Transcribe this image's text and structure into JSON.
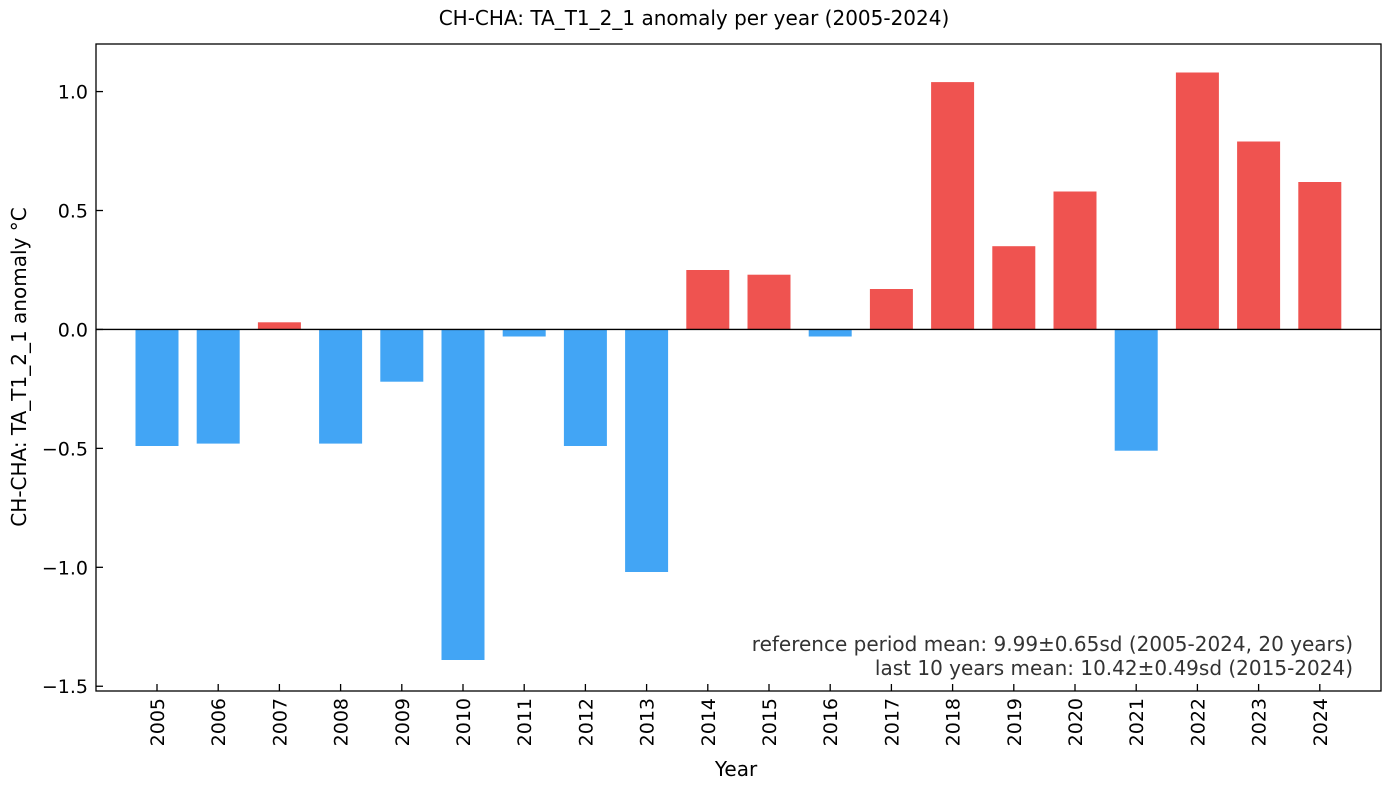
{
  "chart_data": {
    "type": "bar",
    "title": "CH-CHA: TA_T1_2_1 anomaly per year (2005-2024)",
    "xlabel": "Year",
    "ylabel": "CH-CHA: TA_T1_2_1 anomaly  °C",
    "categories": [
      "2005",
      "2006",
      "2007",
      "2008",
      "2009",
      "2010",
      "2011",
      "2012",
      "2013",
      "2014",
      "2015",
      "2016",
      "2017",
      "2018",
      "2019",
      "2020",
      "2021",
      "2022",
      "2023",
      "2024"
    ],
    "values": [
      -0.49,
      -0.48,
      0.03,
      -0.48,
      -0.22,
      -1.39,
      -0.03,
      -0.49,
      -1.02,
      0.25,
      0.23,
      -0.03,
      0.17,
      1.04,
      0.35,
      0.58,
      -0.51,
      1.08,
      0.79,
      0.62
    ],
    "ylim": [
      -1.52,
      1.2
    ],
    "yticks": [
      -1.5,
      -1.0,
      -0.5,
      0.0,
      0.5,
      1.0
    ],
    "ytick_labels": [
      "−1.5",
      "−1.0",
      "−0.5",
      "0.0",
      "0.5",
      "1.0"
    ],
    "colors": {
      "positive": "#EF5350",
      "negative": "#42A5F5",
      "zero_line": "#000000"
    },
    "grid": false,
    "annotations": [
      "reference period mean: 9.99±0.65sd (2005-2024, 20 years)",
      "last 10 years mean: 10.42±0.49sd (2015-2024)"
    ]
  }
}
